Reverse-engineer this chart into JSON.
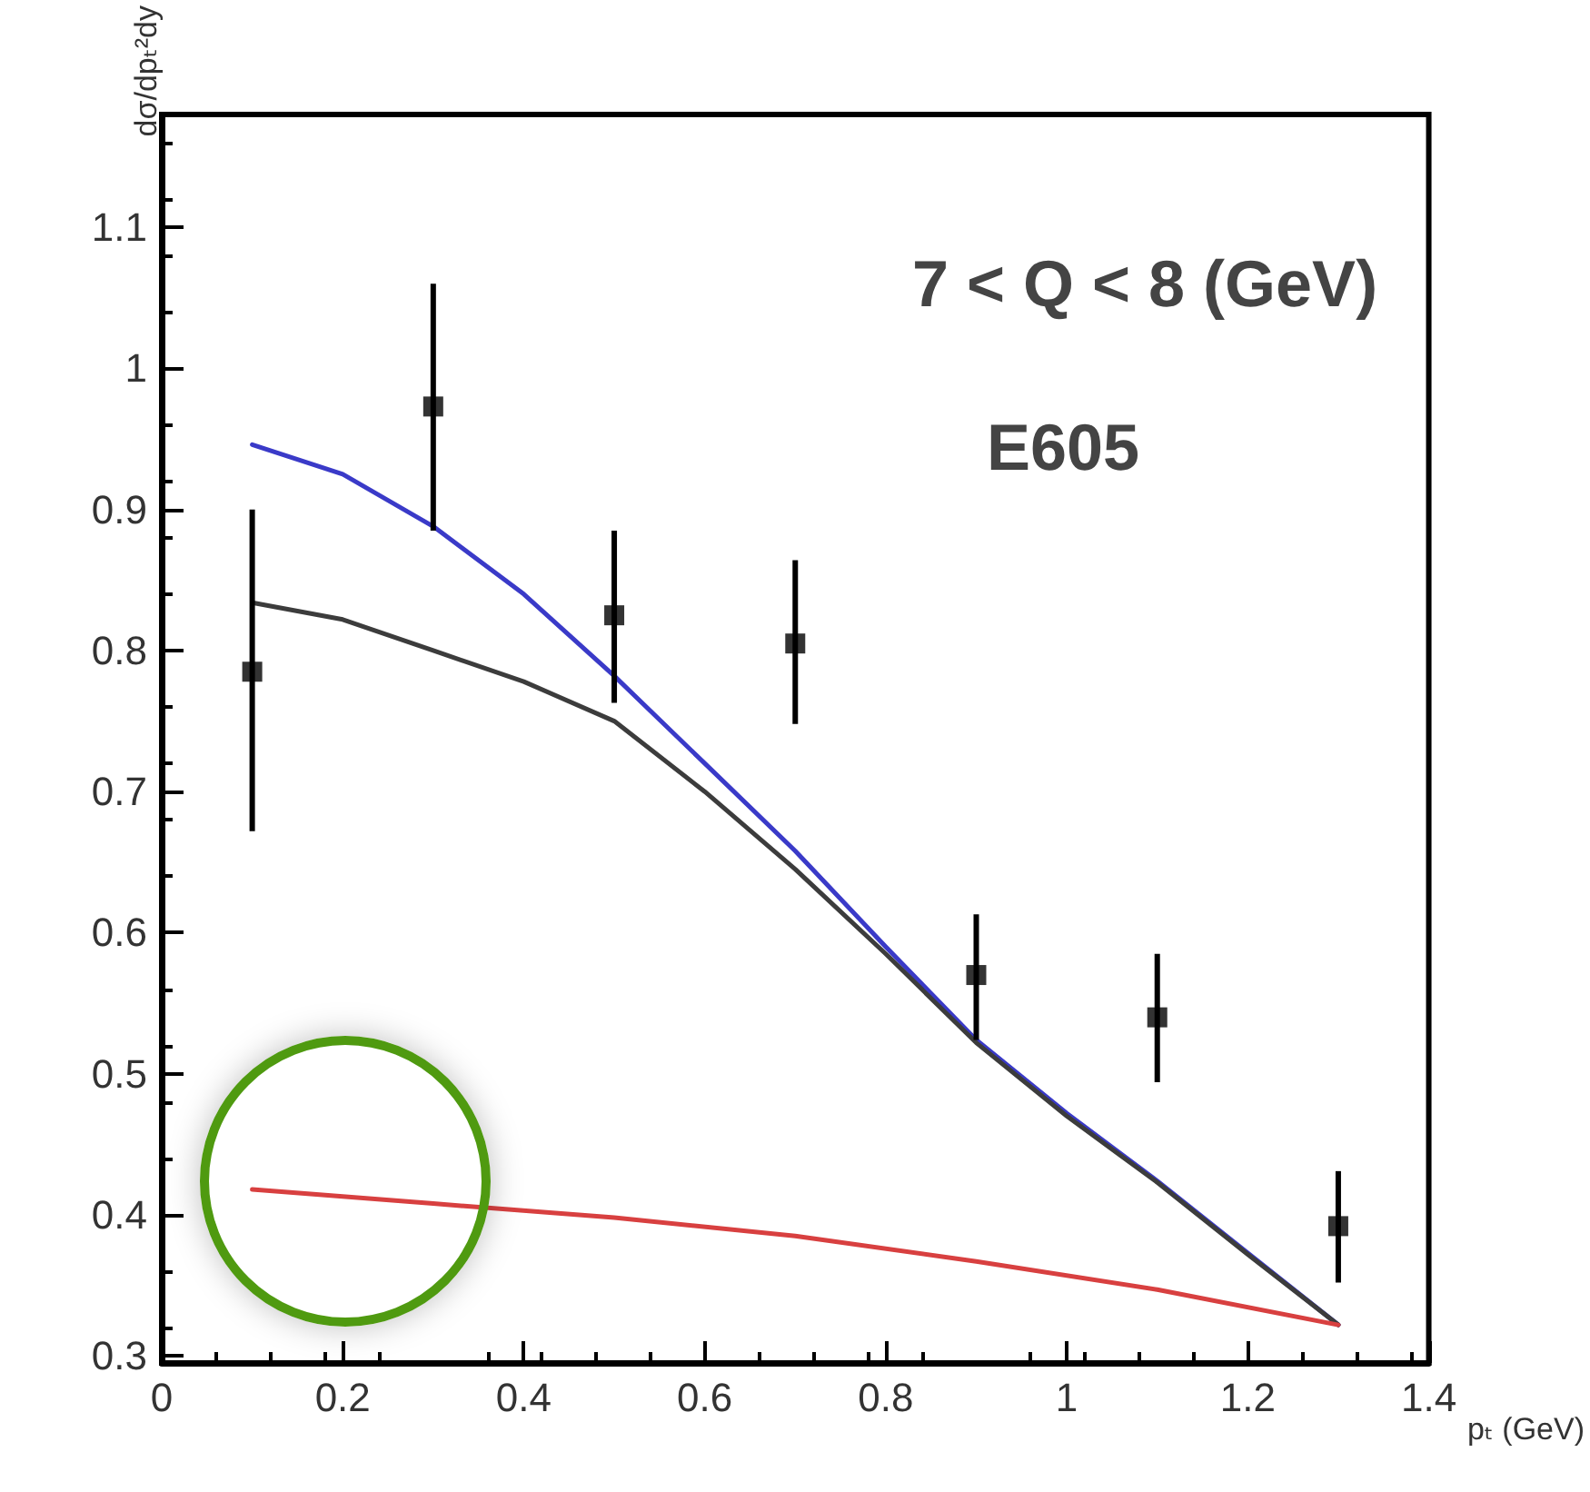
{
  "chart_data": {
    "type": "line",
    "xlabel": "pₜ (GeV)",
    "ylabel": "dσ/dpₜ²dy",
    "annotations": [
      "7 < Q < 8 (GeV)",
      "E605"
    ],
    "xlim": [
      0,
      1.4
    ],
    "xticks": [
      0,
      0.2,
      0.4,
      0.6,
      0.8,
      1,
      1.2,
      1.4
    ],
    "ylim": [
      0.295,
      1.18
    ],
    "yticks": [
      0.3,
      0.4,
      0.5,
      0.6,
      0.7,
      0.8,
      0.9,
      1,
      1.1
    ],
    "grid": false,
    "series": [
      {
        "color": "#3a3ac8",
        "marker": "none",
        "line_style": "solid",
        "x": [
          0.1,
          0.2,
          0.3,
          0.4,
          0.5,
          0.6,
          0.7,
          0.8,
          0.9,
          1.0,
          1.1,
          1.2,
          1.3
        ],
        "values": [
          0.946,
          0.925,
          0.888,
          0.84,
          0.782,
          0.72,
          0.658,
          0.59,
          0.524,
          0.472,
          0.424,
          0.373,
          0.322
        ]
      },
      {
        "color": "#3c3c3c",
        "marker": "none",
        "line_style": "solid",
        "x": [
          0.1,
          0.2,
          0.3,
          0.4,
          0.5,
          0.6,
          0.7,
          0.8,
          0.9,
          1.0,
          1.1,
          1.2,
          1.3
        ],
        "values": [
          0.834,
          0.822,
          0.8,
          0.778,
          0.75,
          0.7,
          0.645,
          0.585,
          0.522,
          0.47,
          0.423,
          0.372,
          0.322
        ]
      },
      {
        "color": "#d84040",
        "marker": "none",
        "line_style": "solid",
        "x": [
          0.1,
          0.3,
          0.5,
          0.7,
          0.9,
          1.1,
          1.3
        ],
        "values": [
          0.418,
          0.408,
          0.398,
          0.385,
          0.367,
          0.347,
          0.322
        ]
      },
      {
        "type": "scatter",
        "color": "#000000",
        "marker": "square",
        "x": [
          0.1,
          0.3,
          0.5,
          0.7,
          0.9,
          1.1,
          1.3
        ],
        "values": [
          0.785,
          0.973,
          0.825,
          0.805,
          0.57,
          0.54,
          0.392
        ],
        "errors": [
          [
            0.672,
            0.9
          ],
          [
            0.885,
            1.06
          ],
          [
            0.763,
            0.885
          ],
          [
            0.748,
            0.864
          ],
          [
            0.524,
            0.613
          ],
          [
            0.494,
            0.585
          ],
          [
            0.352,
            0.431
          ]
        ]
      }
    ]
  }
}
